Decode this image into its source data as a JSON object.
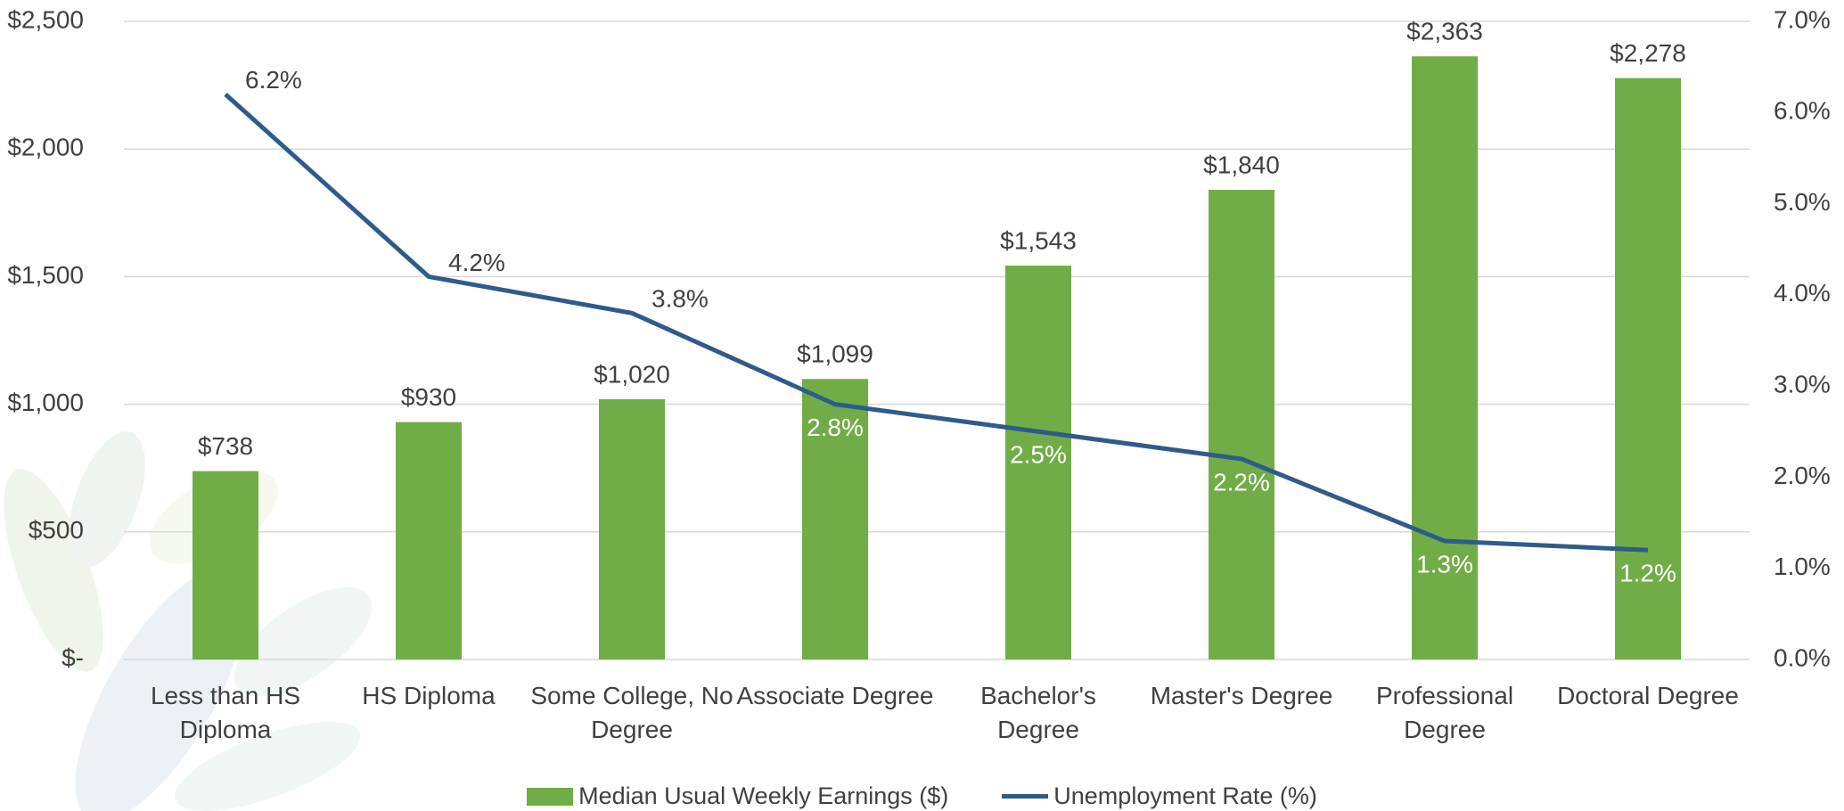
{
  "chart_data": {
    "type": "bar-line",
    "categories": [
      "Less than HS Diploma",
      "HS Diploma",
      "Some College, No Degree",
      "Associate Degree",
      "Bachelor's Degree",
      "Master's Degree",
      "Professional Degree",
      "Doctoral Degree"
    ],
    "series": [
      {
        "name": "Median Usual Weekly Earnings ($)",
        "type": "bar",
        "color": "#70ad47",
        "values": [
          738,
          930,
          1020,
          1099,
          1543,
          1840,
          2363,
          2278
        ],
        "value_labels": [
          "$738",
          "$930",
          "$1,020",
          "$1,099",
          "$1,543",
          "$1,840",
          "$2,363",
          "$2,278"
        ]
      },
      {
        "name": "Unemployment Rate (%)",
        "type": "line",
        "axis": "y2",
        "color": "#2f5b8a",
        "values": [
          6.2,
          4.2,
          3.8,
          2.8,
          2.5,
          2.2,
          1.3,
          1.2
        ],
        "value_labels": [
          "6.2%",
          "4.2%",
          "3.8%",
          "2.8%",
          "2.5%",
          "2.2%",
          "1.3%",
          "1.2%"
        ]
      }
    ],
    "ylim": [
      0,
      2500
    ],
    "yticks": [
      {
        "value": 0,
        "label": "$-"
      },
      {
        "value": 500,
        "label": "$500"
      },
      {
        "value": 1000,
        "label": "$1,000"
      },
      {
        "value": 1500,
        "label": "$1,500"
      },
      {
        "value": 2000,
        "label": "$2,000"
      },
      {
        "value": 2500,
        "label": "$2,500"
      }
    ],
    "y2lim": [
      0,
      7
    ],
    "y2ticks": [
      {
        "value": 0,
        "label": "0.0%"
      },
      {
        "value": 1,
        "label": "1.0%"
      },
      {
        "value": 2,
        "label": "2.0%"
      },
      {
        "value": 3,
        "label": "3.0%"
      },
      {
        "value": 4,
        "label": "4.0%"
      },
      {
        "value": 5,
        "label": "5.0%"
      },
      {
        "value": 6,
        "label": "6.0%"
      },
      {
        "value": 7,
        "label": "7.0%"
      }
    ],
    "grid": true,
    "legend": "bottom"
  }
}
